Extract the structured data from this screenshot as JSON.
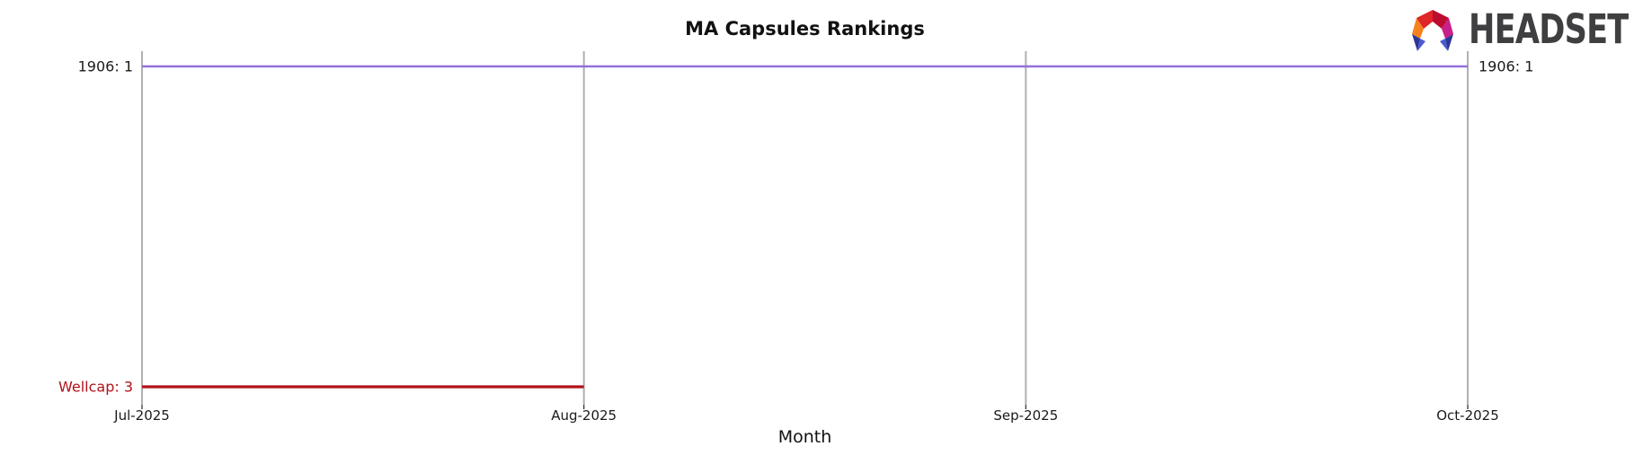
{
  "brand": {
    "name": "HEADSET",
    "logo_colors": [
      "#f5821f",
      "#de2726",
      "#bc0c2f",
      "#c9208a",
      "#2b3792",
      "#4a5bd2"
    ]
  },
  "chart_data": {
    "type": "line",
    "title": "MA Capsules Rankings",
    "xlabel": "Month",
    "ylabel": "",
    "categories": [
      "Jul-2025",
      "Aug-2025",
      "Sep-2025",
      "Oct-2025"
    ],
    "series": [
      {
        "name": "1906",
        "values": [
          1,
          1,
          1,
          1
        ],
        "color": "#9370db",
        "left_label": "1906: 1",
        "right_label": "1906: 1",
        "label_color": "#1a1a1a"
      },
      {
        "name": "Wellcap",
        "values": [
          3,
          3,
          null,
          null
        ],
        "color": "#b11218",
        "left_label": "Wellcap: 3",
        "right_label": "",
        "label_color": "#b11218"
      }
    ],
    "ylim": [
      1,
      3
    ],
    "y_inverted": true,
    "grid": "vertical-only",
    "grid_color": "#b0b0b0",
    "tick_label_color": "#1a1a1a",
    "legend": "inline-labels"
  }
}
